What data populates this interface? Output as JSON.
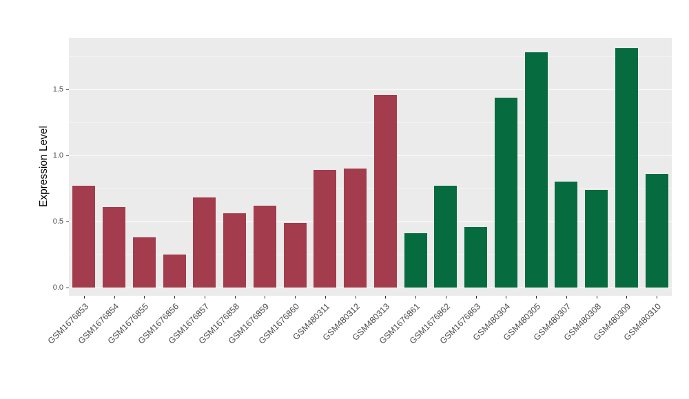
{
  "chart_data": {
    "type": "bar",
    "title": "",
    "xlabel": "",
    "ylabel": "Expression Level",
    "ylim": [
      0,
      1.89
    ],
    "yticks": [
      0,
      0.5,
      1.0,
      1.5
    ],
    "ytick_labels": [
      "0.0",
      "0.5",
      "1.0",
      "1.5"
    ],
    "yminor": [
      0.25,
      0.75,
      1.25,
      1.75
    ],
    "grid": "on",
    "legend_position": "none",
    "categories": [
      "GSM1676853",
      "GSM1676854",
      "GSM1676855",
      "GSM1676856",
      "GSM1676857",
      "GSM1676858",
      "GSM1676859",
      "GSM1676860",
      "GSM480311",
      "GSM480312",
      "GSM480313",
      "GSM1676861",
      "GSM1676862",
      "GSM1676863",
      "GSM480304",
      "GSM480305",
      "GSM480307",
      "GSM480308",
      "GSM480309",
      "GSM480310"
    ],
    "values": [
      0.77,
      0.61,
      0.38,
      0.25,
      0.68,
      0.56,
      0.62,
      0.49,
      0.89,
      0.9,
      1.46,
      0.41,
      0.77,
      0.46,
      1.44,
      1.78,
      0.8,
      0.74,
      1.81,
      0.86
    ],
    "groups": [
      "red",
      "red",
      "red",
      "red",
      "red",
      "red",
      "red",
      "red",
      "red",
      "red",
      "red",
      "green",
      "green",
      "green",
      "green",
      "green",
      "green",
      "green",
      "green",
      "green"
    ],
    "colors": {
      "red": "#A33C4C",
      "green": "#066C3F"
    },
    "panel_background": "#EBEBEB",
    "grid_major_color": "#FFFFFF",
    "grid_minor_color": "#F5F5F5",
    "tick_color": "#333333",
    "tick_label_color": "#4D4D4D"
  }
}
